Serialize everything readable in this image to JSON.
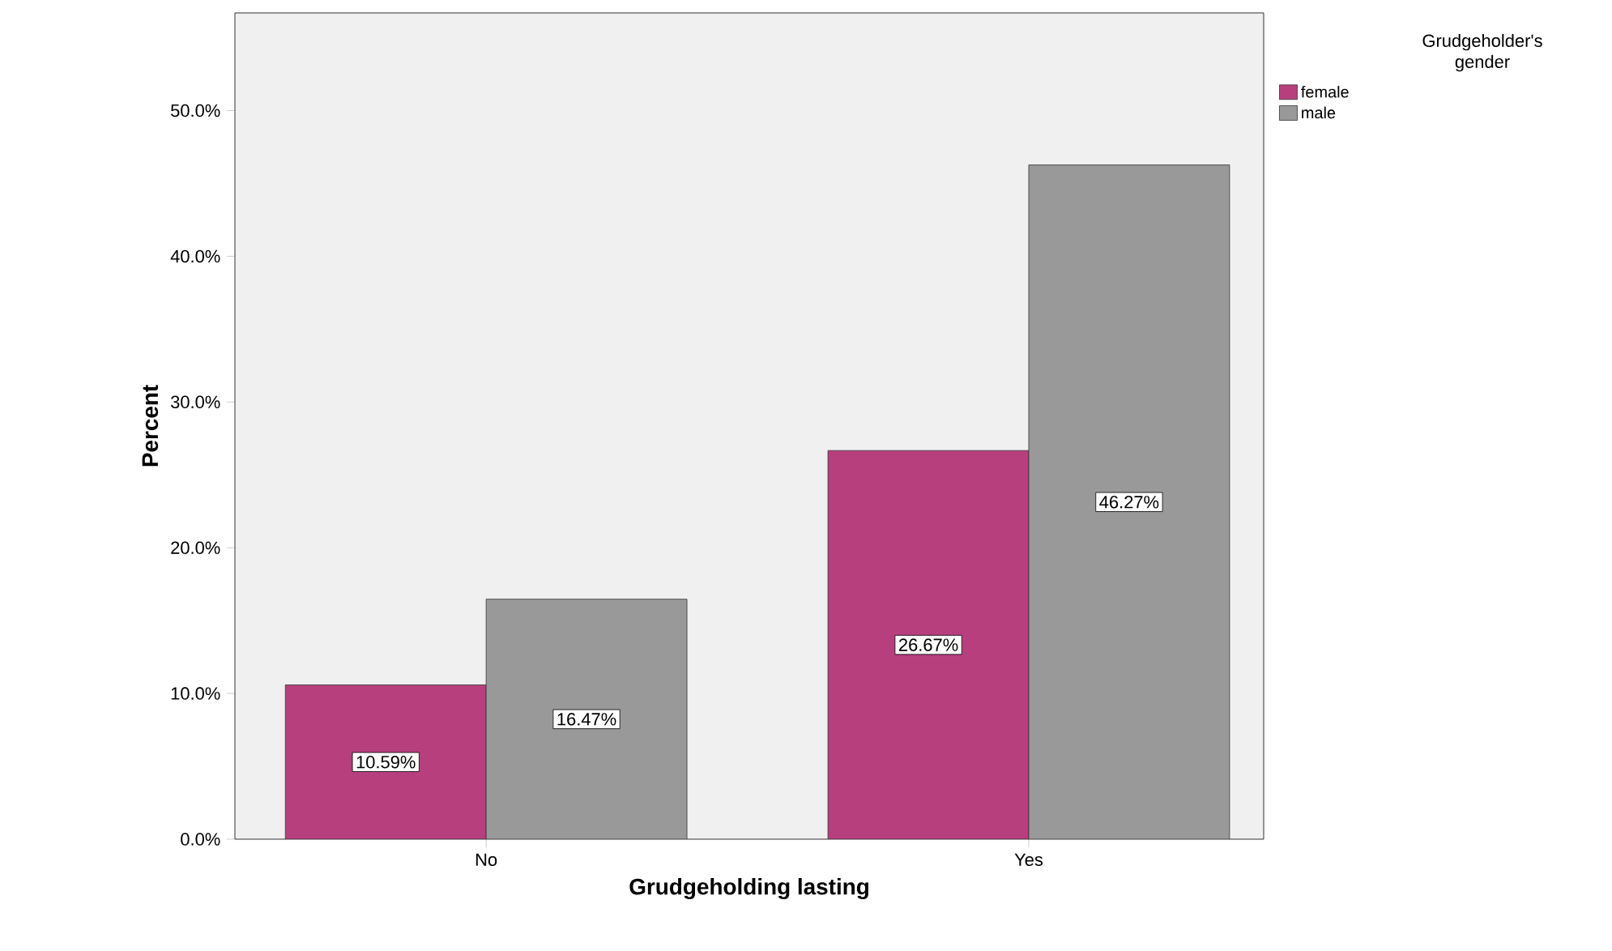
{
  "chart_data": {
    "type": "bar",
    "xlabel": "Grudgeholding lasting",
    "ylabel": "Percent",
    "legend_title": "Grudgeholder's gender",
    "categories": [
      "No",
      "Yes"
    ],
    "series": [
      {
        "name": "female",
        "color": "#b83f7e",
        "values": [
          10.59,
          26.67
        ],
        "value_labels": [
          "10.59%",
          "26.67%"
        ]
      },
      {
        "name": "male",
        "color": "#999999",
        "values": [
          16.47,
          46.27
        ],
        "value_labels": [
          "16.47%",
          "46.27%"
        ]
      }
    ],
    "ylim": [
      0,
      56.7
    ],
    "yticks": [
      {
        "value": 0,
        "label": "0.0%"
      },
      {
        "value": 10,
        "label": "10.0%"
      },
      {
        "value": 20,
        "label": "20.0%"
      },
      {
        "value": 30,
        "label": "30.0%"
      },
      {
        "value": 40,
        "label": "40.0%"
      },
      {
        "value": 50,
        "label": "50.0%"
      }
    ],
    "legend": "top right"
  }
}
